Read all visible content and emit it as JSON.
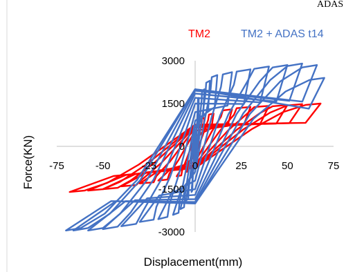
{
  "corner_text": "ADAS",
  "chart_data": {
    "type": "line",
    "title": "",
    "xlabel": "Displacement(mm)",
    "ylabel": "Force(KN)",
    "xlim": [
      -75,
      75
    ],
    "ylim": [
      -3000,
      3000
    ],
    "x_ticks": [
      "-75",
      "-50",
      "-25",
      "0",
      "25",
      "50",
      "75"
    ],
    "y_ticks": [
      "3000",
      "1500",
      "0",
      "-1500",
      "-3000"
    ],
    "grid": false,
    "legend_position": "top-right",
    "series": [
      {
        "name": "TM2",
        "color": "#ff0000",
        "loops": [
          {
            "d": 5,
            "fp": 1000,
            "fn": -900,
            "f0": 180
          },
          {
            "d": 10,
            "fp": 1150,
            "fn": -1050,
            "f0": 350
          },
          {
            "d": 20,
            "fp": 1300,
            "fn": -1200,
            "f0": 550
          },
          {
            "d": 30,
            "fp": 1380,
            "fn": -1300,
            "f0": 650
          },
          {
            "d": 40,
            "fp": 1420,
            "fn": -1400,
            "f0": 700
          },
          {
            "d": 50,
            "fp": 1450,
            "fn": -1500,
            "f0": 720
          },
          {
            "d": 58,
            "fp": 1480,
            "fn": -1550,
            "f0": 740
          },
          {
            "d": 68,
            "fp": 1500,
            "fn": -1600,
            "f0": 760
          }
        ]
      },
      {
        "name": "TM2 + ADAS t14",
        "color": "#4472c4",
        "loops": [
          {
            "d": 2,
            "fp": 1700,
            "fn": -1600,
            "f0": 300
          },
          {
            "d": 5,
            "fp": 2000,
            "fn": -1900,
            "f0": 500
          },
          {
            "d": 8,
            "fp": 2300,
            "fn": -2200,
            "f0": 700
          },
          {
            "d": 12,
            "fp": 2500,
            "fn": -2400,
            "f0": 900
          },
          {
            "d": 20,
            "fp": 2600,
            "fn": -2550,
            "f0": 1200
          },
          {
            "d": 30,
            "fp": 2700,
            "fn": -2650,
            "f0": 1500
          },
          {
            "d": 40,
            "fp": 2800,
            "fn": -2800,
            "f0": 1700
          },
          {
            "d": 50,
            "fp": 2850,
            "fn": -2900,
            "f0": 1850
          },
          {
            "d": 58,
            "fp": 2900,
            "fn": -2950,
            "f0": 1950
          },
          {
            "d": 66,
            "fp": 2850,
            "fn": -2950,
            "f0": 2000
          },
          {
            "d": 70,
            "fp": 2400,
            "fn": -2950,
            "f0": 2000
          }
        ]
      }
    ]
  }
}
